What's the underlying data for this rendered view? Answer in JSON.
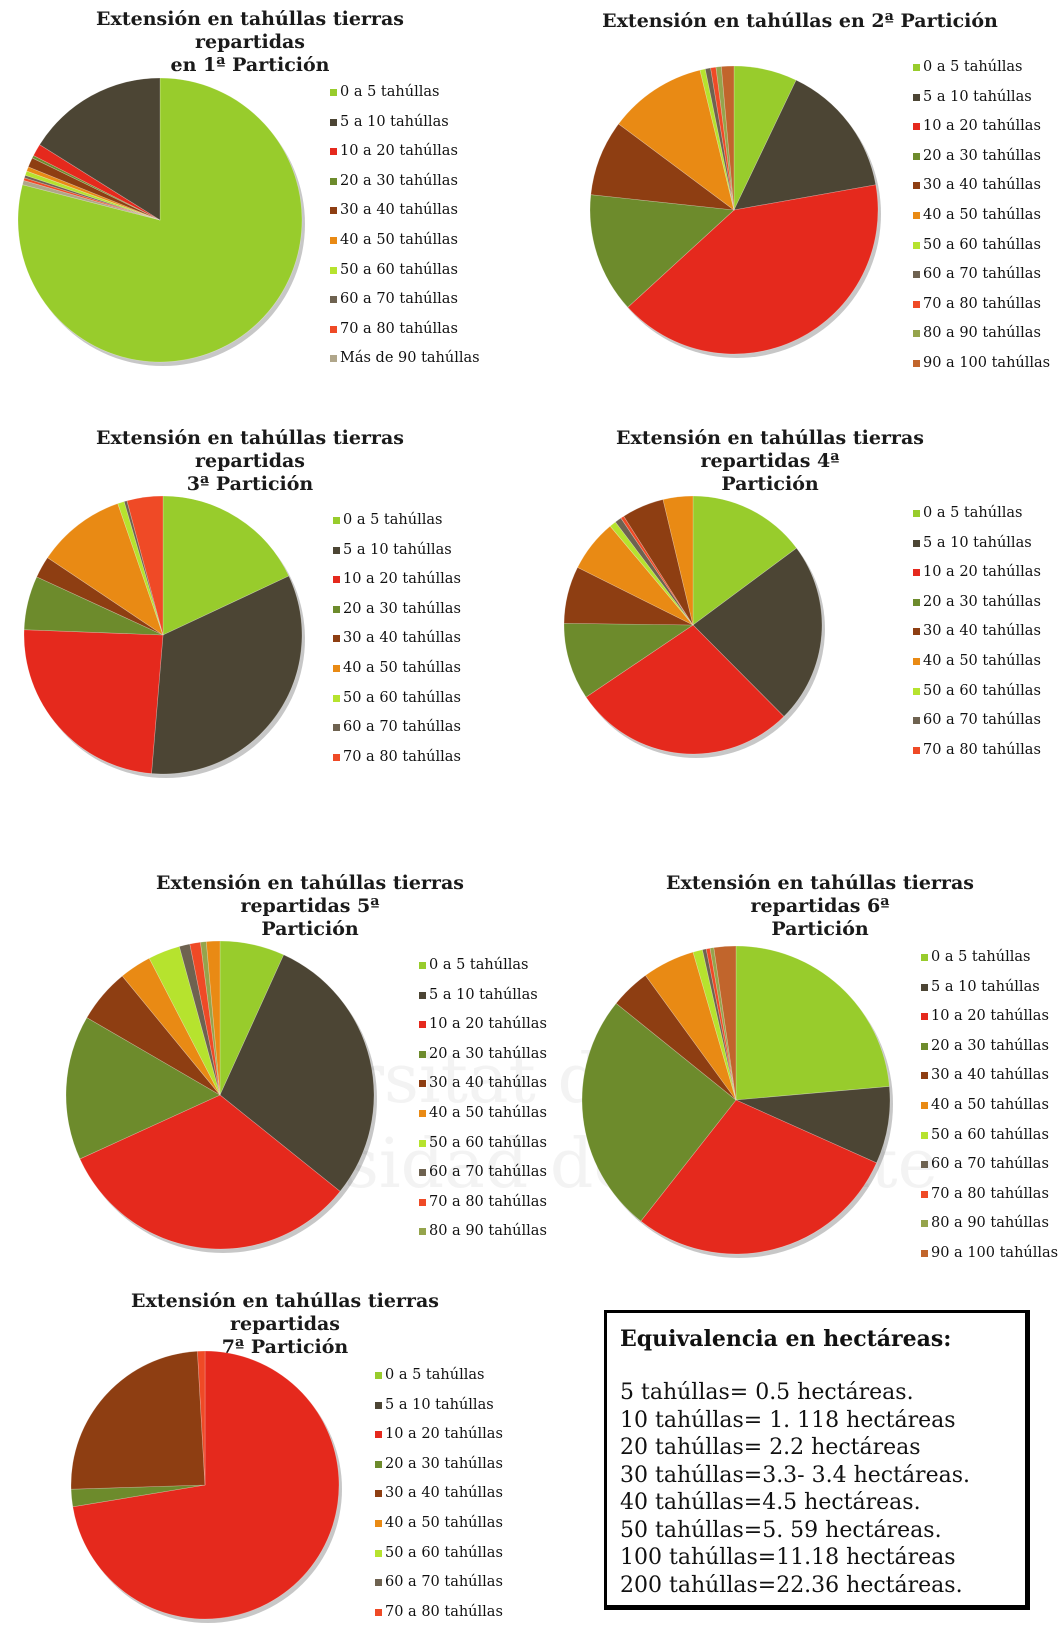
{
  "watermark": {
    "line1": "Universitat d'Alacant",
    "line2": "Universidad de Alicante"
  },
  "colors": {
    "0 a 5 tahúllas": "#98cc2c",
    "5 a 10 tahúllas": "#4c4534",
    "10 a 20 tahúllas": "#e5291d",
    "20 a 30 tahúllas": "#6d8b2c",
    "30 a 40 tahúllas": "#8e3e12",
    "40 a 50 tahúllas": "#e98a14",
    "50 a 60 tahúllas": "#b6e32e",
    "60 a 70 tahúllas": "#6e6250",
    "70 a 80 tahúllas": "#ef4a26",
    "80 a 90 tahúllas": "#95a44c",
    "90 a 100 tahúllas": "#c1652c",
    "Más de 90 tahúllas": "#b0a68a"
  },
  "chart_data": [
    {
      "type": "pie",
      "title": "Extensión en tahúllas tierras repartidas en 1ª Partición",
      "title_lines": [
        "Extensión en tahúllas tierras repartidas",
        "en 1ª Partición"
      ],
      "categories": [
        "0 a 5 tahúllas",
        "5 a 10 tahúllas",
        "10 a 20 tahúllas",
        "20 a 30 tahúllas",
        "30 a 40 tahúllas",
        "40 a 50 tahúllas",
        "50 a 60 tahúllas",
        "60 a 70 tahúllas",
        "70 a 80 tahúllas",
        "Más de 90 tahúllas"
      ],
      "values": [
        79.0,
        16.1,
        1.4,
        0.3,
        1.1,
        0.5,
        0.5,
        0.3,
        0.3,
        0.5
      ],
      "slice_order": [
        0,
        9,
        8,
        7,
        6,
        5,
        4,
        3,
        2,
        1
      ]
    },
    {
      "type": "pie",
      "title": "Extensión en tahúllas en 2ª Partición",
      "title_lines": [
        "Extensión en tahúllas en 2ª Partición"
      ],
      "categories": [
        "0 a 5 tahúllas",
        "5 a 10 tahúllas",
        "10 a 20 tahúllas",
        "20 a 30 tahúllas",
        "30 a 40 tahúllas",
        "40 a 50 tahúllas",
        "50 a 60 tahúllas",
        "60 a 70 tahúllas",
        "70 a 80 tahúllas",
        "80 a 90 tahúllas",
        "90 a 100 tahúllas"
      ],
      "values": [
        7.1,
        15.1,
        41.0,
        13.5,
        8.5,
        11.0,
        0.6,
        0.6,
        0.6,
        0.6,
        1.4
      ],
      "slice_order": [
        0,
        1,
        2,
        3,
        4,
        5,
        6,
        7,
        8,
        9,
        10
      ]
    },
    {
      "type": "pie",
      "title": "Extensión en tahúllas tierras repartidas 3ª Partición",
      "title_lines": [
        "Extensión en tahúllas tierras repartidas",
        "3ª Partición"
      ],
      "categories": [
        "0 a 5 tahúllas",
        "5 a 10 tahúllas",
        "10 a 20 tahúllas",
        "20 a 30 tahúllas",
        "30 a 40 tahúllas",
        "40 a 50 tahúllas",
        "50 a 60 tahúllas",
        "60 a 70 tahúllas",
        "70 a 80 tahúllas"
      ],
      "values": [
        16.4,
        30.3,
        22.1,
        5.7,
        2.3,
        9.4,
        0.7,
        0.3,
        3.8
      ],
      "slice_order": [
        0,
        1,
        2,
        3,
        4,
        5,
        6,
        7,
        8
      ]
    },
    {
      "type": "pie",
      "title": "Extensión en tahúllas tierras repartidas 4ª Partición",
      "title_lines": [
        "Extensión en tahúllas tierras repartidas 4ª",
        "Partición"
      ],
      "categories": [
        "0 a 5 tahúllas",
        "5 a 10 tahúllas",
        "10 a 20 tahúllas",
        "20 a 30 tahúllas",
        "30 a 40 tahúllas",
        "40 a 50 tahúllas",
        "50 a 60 tahúllas",
        "60 a 70 tahúllas",
        "70 a 80 tahúllas"
      ],
      "values": [
        14.3,
        21.9,
        27.0,
        9.3,
        6.9,
        6.3,
        0.8,
        0.8,
        0.4
      ],
      "extra_slices": [
        {
          "color_of": "30 a 40 tahúllas",
          "value": 5.1
        },
        {
          "color_of": "40 a 50 tahúllas",
          "value": 3.6
        }
      ],
      "slice_order": [
        0,
        1,
        2,
        3,
        4,
        5,
        6,
        7,
        8
      ]
    },
    {
      "type": "pie",
      "title": "Extensión en tahúllas tierras repartidas 5ª Partición",
      "title_lines": [
        "Extensión en tahúllas tierras repartidas 5ª",
        "Partición"
      ],
      "categories": [
        "0 a 5 tahúllas",
        "5 a 10 tahúllas",
        "10 a 20 tahúllas",
        "20 a 30 tahúllas",
        "30 a 40 tahúllas",
        "40 a 50 tahúllas",
        "50 a 60 tahúllas",
        "60 a 70 tahúllas",
        "70 a 80 tahúllas",
        "80 a 90 tahúllas"
      ],
      "values": [
        6.7,
        28.6,
        32.0,
        15.0,
        5.6,
        3.3,
        3.3,
        1.1,
        1.1,
        0.6
      ],
      "extra_slices": [
        {
          "color_of": "40 a 50 tahúllas",
          "value": 1.4
        }
      ],
      "slice_order": [
        0,
        1,
        2,
        3,
        4,
        5,
        6,
        7,
        8,
        9
      ]
    },
    {
      "type": "pie",
      "title": "Extensión en tahúllas tierras repartidas 6ª Partición",
      "title_lines": [
        "Extensión en tahúllas tierras repartidas 6ª",
        "Partición"
      ],
      "categories": [
        "0 a 5 tahúllas",
        "5 a 10 tahúllas",
        "10 a 20 tahúllas",
        "20 a 30 tahúllas",
        "30 a 40 tahúllas",
        "40 a 50 tahúllas",
        "50 a 60 tahúllas",
        "60 a 70 tahúllas",
        "70 a 80 tahúllas",
        "80 a 90 tahúllas",
        "90 a 100 tahúllas"
      ],
      "values": [
        23.6,
        8.1,
        28.9,
        25.2,
        4.2,
        5.5,
        1.0,
        0.4,
        0.4,
        0.4,
        2.3
      ],
      "slice_order": [
        0,
        1,
        2,
        3,
        4,
        5,
        6,
        7,
        8,
        9,
        10
      ]
    },
    {
      "type": "pie",
      "title": "Extensión en tahúllas tierras repartidas 7ª Partición",
      "title_lines": [
        "Extensión en tahúllas tierras repartidas",
        "7ª Partición"
      ],
      "categories": [
        "0 a 5 tahúllas",
        "5 a 10 tahúllas",
        "10 a 20 tahúllas",
        "20 a 30 tahúllas",
        "30 a 40 tahúllas",
        "40 a 50 tahúllas",
        "50 a 60 tahúllas",
        "60 a 70 tahúllas",
        "70 a 80 tahúllas"
      ],
      "values": [
        0.0,
        0.0,
        72.4,
        2.1,
        24.6,
        0.0,
        0.0,
        0.0,
        0.9
      ],
      "slice_order": [
        0,
        1,
        2,
        3,
        4,
        5,
        6,
        7,
        8
      ]
    }
  ],
  "equivalence": {
    "title": "Equivalencia en hectáreas:",
    "lines": [
      "5 tahúllas= 0.5 hectáreas.",
      "10 tahúllas= 1. 118 hectáreas",
      "20 tahúllas= 2.2 hectáreas",
      "30 tahúllas=3.3- 3.4 hectáreas.",
      "40 tahúllas=4.5 hectáreas.",
      "50 tahúllas=5. 59 hectáreas.",
      "100 tahúllas=11.18 hectáreas",
      "200 tahúllas=22.36 hectáreas."
    ]
  }
}
